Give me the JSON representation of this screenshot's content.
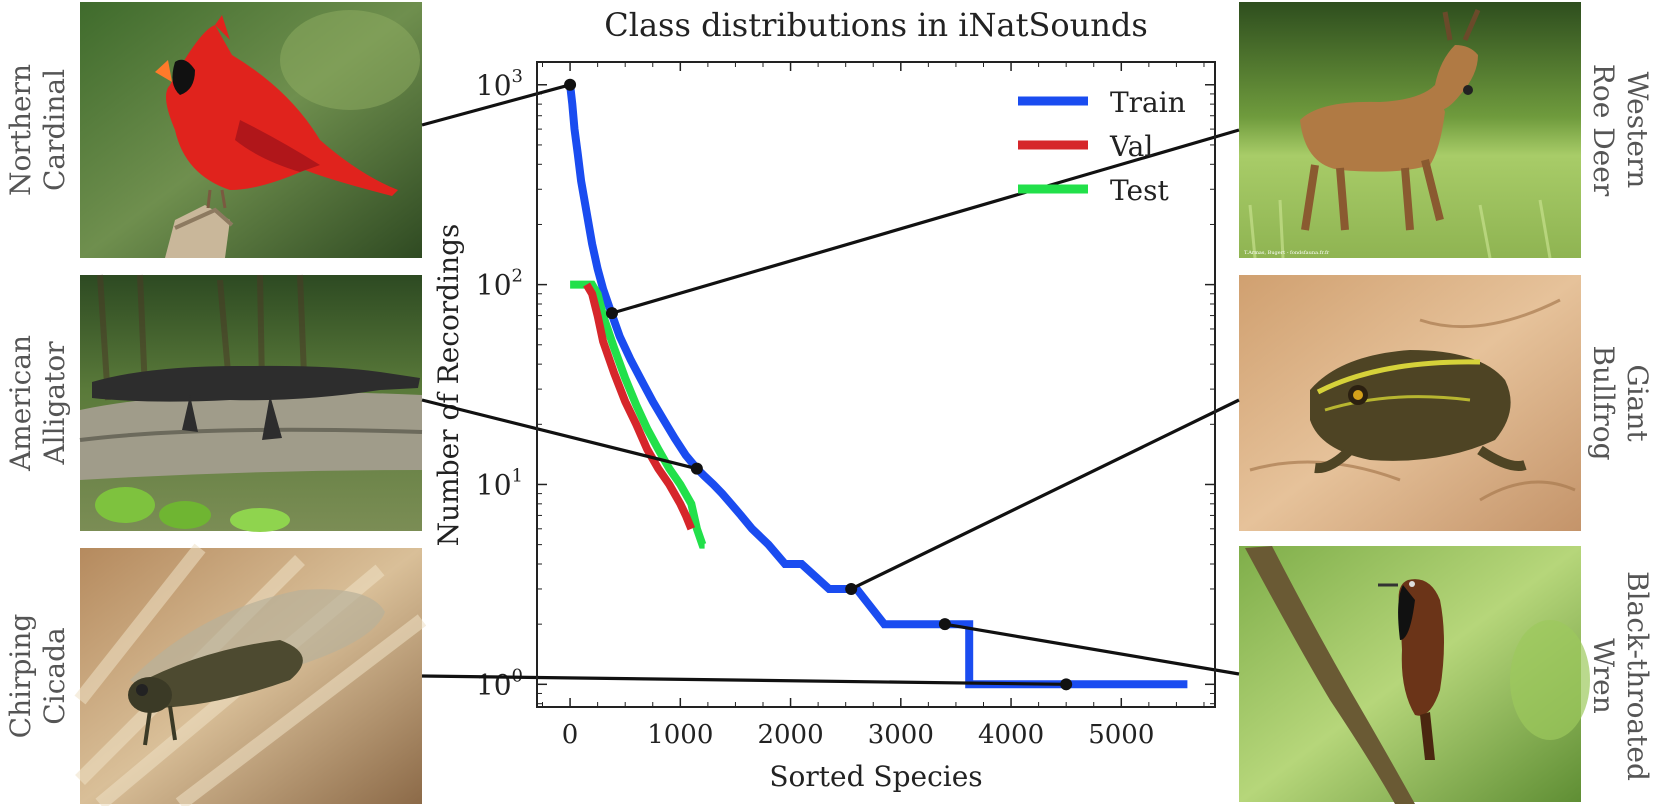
{
  "chart_data": {
    "type": "line",
    "title": "Class distributions in iNatSounds",
    "xlabel": "Sorted Species",
    "ylabel": "Number of Recordings",
    "yscale": "log",
    "xlim": [
      -300,
      5850
    ],
    "ylim": [
      0.77,
      1300
    ],
    "xticks": [
      0,
      1000,
      2000,
      3000,
      4000,
      5000
    ],
    "xtick_labels": [
      "0",
      "1000",
      "2000",
      "3000",
      "4000",
      "5000"
    ],
    "yticks": [
      1,
      10,
      100,
      1000
    ],
    "ytick_bases": [
      "10",
      "10",
      "10",
      "10"
    ],
    "ytick_exps": [
      "0",
      "1",
      "2",
      "3"
    ],
    "legend_position": "upper-right",
    "series": [
      {
        "name": "Train",
        "color": "#1a4cf0",
        "x": [
          0,
          20,
          40,
          70,
          100,
          150,
          200,
          250,
          300,
          375,
          450,
          550,
          650,
          750,
          850,
          950,
          1050,
          1150,
          1220,
          1300,
          1380,
          1460,
          1550,
          1650,
          1800,
          1950,
          2100,
          2350,
          2600,
          2850,
          3100,
          3400,
          3620,
          3620,
          5600
        ],
        "y": [
          1000,
          800,
          600,
          450,
          330,
          230,
          160,
          120,
          95,
          72,
          55,
          42,
          33,
          26,
          21,
          17,
          14,
          12,
          11,
          10,
          9,
          8,
          7,
          6,
          5,
          4,
          4,
          3,
          3,
          2,
          2,
          2,
          2,
          1,
          1
        ]
      },
      {
        "name": "Val",
        "color": "#d6262b",
        "x": [
          150,
          200,
          250,
          300,
          400,
          500,
          600,
          700,
          800,
          900,
          1000,
          1050,
          1100
        ],
        "y": [
          100,
          90,
          70,
          52,
          36,
          26,
          20,
          15,
          12,
          10,
          8,
          7,
          6
        ]
      },
      {
        "name": "Test",
        "color": "#22e04a",
        "x": [
          0,
          100,
          200,
          250,
          300,
          400,
          500,
          600,
          700,
          800,
          900,
          1000,
          1100,
          1150,
          1200,
          1220
        ],
        "y": [
          100,
          100,
          100,
          90,
          70,
          48,
          34,
          25,
          19,
          15,
          12,
          10,
          8,
          6,
          5,
          5
        ]
      }
    ],
    "markers": [
      {
        "x": 0,
        "y": 1000
      },
      {
        "x": 380,
        "y": 72
      },
      {
        "x": 1150,
        "y": 12
      },
      {
        "x": 2550,
        "y": 3
      },
      {
        "x": 3400,
        "y": 2
      },
      {
        "x": 4500,
        "y": 1
      }
    ]
  },
  "species": [
    {
      "id": "cardinal",
      "line1": "Northern",
      "line2": "Cardinal",
      "side": "left",
      "marker": 0
    },
    {
      "id": "alligator",
      "line1": "American",
      "line2": "Alligator",
      "side": "left",
      "marker": 2
    },
    {
      "id": "cicada",
      "line1": "Chirping",
      "line2": "Cicada",
      "side": "left",
      "marker": 5
    },
    {
      "id": "deer",
      "line1": "Western",
      "line2": "Roe Deer",
      "side": "right",
      "marker": 1
    },
    {
      "id": "bullfrog",
      "line1": "Giant",
      "line2": "Bullfrog",
      "side": "right",
      "marker": 3
    },
    {
      "id": "wren",
      "line1": "Black-throated",
      "line2": "Wren",
      "side": "right",
      "marker": 4
    }
  ],
  "deer_photo_credit": "T.Armas, Bugert - fondsfauna.fr.fr"
}
